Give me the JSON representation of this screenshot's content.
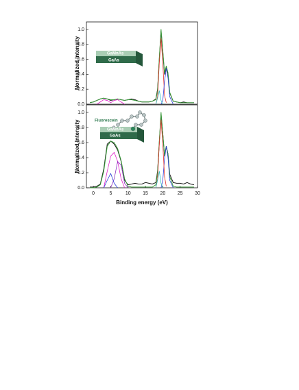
{
  "chart_data": [
    {
      "type": "line",
      "ylabel": "Normalized Intensity",
      "xlim": [
        -2,
        30
      ],
      "ylim": [
        0,
        1.1
      ],
      "yticks": [
        {
          "value": 0,
          "label": "0.0"
        },
        0.2,
        0.4,
        0.6,
        0.8,
        {
          "value": 1,
          "label": "1.0"
        }
      ],
      "annotations": [
        "GaMnAs",
        "GaAs"
      ],
      "x": [
        -1,
        0,
        1,
        2,
        3,
        4,
        5,
        6,
        7,
        8,
        9,
        10,
        11,
        12,
        13,
        14,
        15,
        16,
        17,
        18,
        18.5,
        19,
        19.5,
        20,
        20.5,
        21,
        21.5,
        22,
        23,
        24,
        25,
        26,
        27,
        28,
        29
      ],
      "series": [
        {
          "color": "#1a1a1a",
          "values": [
            0.02,
            0.03,
            0.05,
            0.07,
            0.08,
            0.07,
            0.05,
            0.06,
            0.07,
            0.06,
            0.05,
            0.06,
            0.07,
            0.06,
            0.04,
            0.03,
            0.03,
            0.03,
            0.04,
            0.07,
            0.2,
            0.6,
            0.98,
            0.7,
            0.4,
            0.5,
            0.4,
            0.15,
            0.04,
            0.03,
            0.02,
            0.03,
            0.02,
            0.02,
            0.02
          ]
        },
        {
          "color": "#3a9a3a",
          "values": [
            0.02,
            0.03,
            0.05,
            0.07,
            0.08,
            0.07,
            0.06,
            0.06,
            0.07,
            0.06,
            0.05,
            0.06,
            0.06,
            0.05,
            0.04,
            0.03,
            0.03,
            0.03,
            0.04,
            0.06,
            0.18,
            0.62,
            1.0,
            0.72,
            0.42,
            0.51,
            0.42,
            0.16,
            0.04,
            0.03,
            0.02,
            0.02,
            0.02,
            0.02,
            0.02
          ]
        },
        {
          "color": "#e0302a",
          "values": [
            null,
            null,
            null,
            null,
            null,
            null,
            null,
            null,
            null,
            null,
            null,
            null,
            null,
            null,
            null,
            null,
            null,
            null,
            null,
            0,
            0.1,
            0.55,
            0.88,
            0.55,
            0.12,
            0.02,
            null,
            null,
            null,
            null,
            null,
            null,
            null,
            null,
            null
          ]
        },
        {
          "color": "#2a3ad8",
          "values": [
            null,
            null,
            null,
            null,
            null,
            null,
            null,
            null,
            null,
            null,
            null,
            null,
            null,
            null,
            null,
            null,
            null,
            null,
            null,
            null,
            null,
            null,
            0,
            0.05,
            0.3,
            0.48,
            0.35,
            0.1,
            0,
            null,
            null,
            null,
            null,
            null,
            null
          ]
        },
        {
          "color": "#30c0c0",
          "values": [
            null,
            null,
            null,
            null,
            null,
            null,
            null,
            null,
            null,
            null,
            null,
            null,
            null,
            null,
            null,
            null,
            null,
            null,
            null,
            0,
            0.08,
            0.18,
            0.05,
            0,
            null,
            null,
            null,
            null,
            null,
            null,
            null,
            null,
            null,
            null,
            null
          ]
        },
        {
          "color": "#e020c8",
          "values": [
            null,
            null,
            0,
            0.03,
            0.06,
            0.05,
            0.02,
            0.05,
            0.06,
            0.03,
            0,
            null,
            null,
            null,
            null,
            null,
            null,
            null,
            null,
            null,
            null,
            null,
            null,
            null,
            null,
            null,
            null,
            null,
            null,
            null,
            null,
            null,
            null,
            null,
            null
          ]
        }
      ]
    },
    {
      "type": "line",
      "ylabel": "Normalized Intensity",
      "xlabel": "Binding energy (eV)",
      "xlim": [
        -2,
        30
      ],
      "ylim": [
        0,
        1.1
      ],
      "xticks": [
        0,
        5,
        10,
        15,
        20,
        25,
        30
      ],
      "yticks": [
        {
          "value": 0,
          "label": "0.0"
        },
        0.2,
        0.4,
        0.6,
        0.8,
        {
          "value": 1,
          "label": "1.0"
        }
      ],
      "annotations": [
        "Fluorescein",
        "GaMnAs",
        "GaAs"
      ],
      "x": [
        -1,
        0,
        1,
        2,
        3,
        4,
        5,
        6,
        7,
        8,
        9,
        10,
        11,
        12,
        13,
        14,
        15,
        16,
        17,
        18,
        18.5,
        19,
        19.5,
        20,
        20.5,
        21,
        21.5,
        22,
        23,
        24,
        25,
        26,
        27,
        28,
        29
      ],
      "series": [
        {
          "color": "#1a1a1a",
          "values": [
            0.01,
            0.01,
            0.02,
            0.05,
            0.25,
            0.58,
            0.62,
            0.58,
            0.5,
            0.35,
            0.1,
            0.04,
            0.05,
            0.06,
            0.05,
            0.05,
            0.07,
            0.06,
            0.05,
            0.07,
            0.22,
            0.6,
            0.98,
            0.72,
            0.42,
            0.55,
            0.45,
            0.18,
            0.07,
            0.06,
            0.06,
            0.05,
            0.07,
            0.05,
            0.04
          ]
        },
        {
          "color": "#3a9a3a",
          "values": [
            0,
            0,
            0.01,
            0.04,
            0.22,
            0.55,
            0.62,
            0.6,
            0.52,
            0.36,
            0.12,
            0.02,
            0.01,
            0.01,
            0.01,
            0.01,
            0.01,
            0.01,
            0.01,
            0.04,
            0.2,
            0.62,
            1.0,
            0.72,
            0.43,
            0.55,
            0.44,
            0.15,
            0.02,
            0.01,
            0.01,
            0.01,
            0.01,
            0.01,
            0.01
          ]
        },
        {
          "color": "#e020c8",
          "values": [
            null,
            null,
            null,
            null,
            0,
            0.22,
            0.42,
            0.47,
            0.35,
            0.12,
            0,
            null,
            null,
            null,
            null,
            null,
            null,
            null,
            null,
            null,
            null,
            null,
            null,
            null,
            null,
            null,
            null,
            null,
            null,
            null,
            null,
            null,
            null,
            null,
            null
          ]
        },
        {
          "color": "#8a30c0",
          "values": [
            null,
            null,
            null,
            null,
            null,
            null,
            0,
            0.12,
            0.35,
            0.3,
            0.06,
            0,
            null,
            null,
            null,
            null,
            null,
            null,
            null,
            null,
            null,
            null,
            null,
            null,
            null,
            null,
            null,
            null,
            null,
            null,
            null,
            null,
            null,
            null,
            null
          ]
        },
        {
          "color": "#2a3ad8",
          "values": [
            null,
            null,
            null,
            null,
            0,
            0.1,
            0.19,
            0.06,
            0,
            null,
            null,
            null,
            null,
            null,
            null,
            null,
            null,
            null,
            null,
            null,
            null,
            null,
            0,
            0.1,
            0.38,
            0.55,
            0.4,
            0.1,
            0,
            null,
            null,
            null,
            null,
            null,
            null
          ]
        },
        {
          "color": "#e0302a",
          "values": [
            null,
            null,
            null,
            null,
            null,
            null,
            null,
            null,
            null,
            null,
            null,
            null,
            null,
            null,
            null,
            null,
            null,
            null,
            null,
            0,
            0.12,
            0.58,
            0.9,
            0.58,
            0.15,
            0.02,
            null,
            null,
            null,
            null,
            null,
            null,
            null,
            null,
            null
          ]
        },
        {
          "color": "#30c0c0",
          "values": [
            null,
            null,
            null,
            null,
            null,
            null,
            null,
            null,
            null,
            null,
            null,
            null,
            null,
            null,
            null,
            null,
            null,
            null,
            null,
            0,
            0.1,
            0.22,
            0.06,
            0,
            null,
            null,
            null,
            null,
            null,
            null,
            null,
            null,
            null,
            null,
            null
          ]
        }
      ]
    }
  ]
}
